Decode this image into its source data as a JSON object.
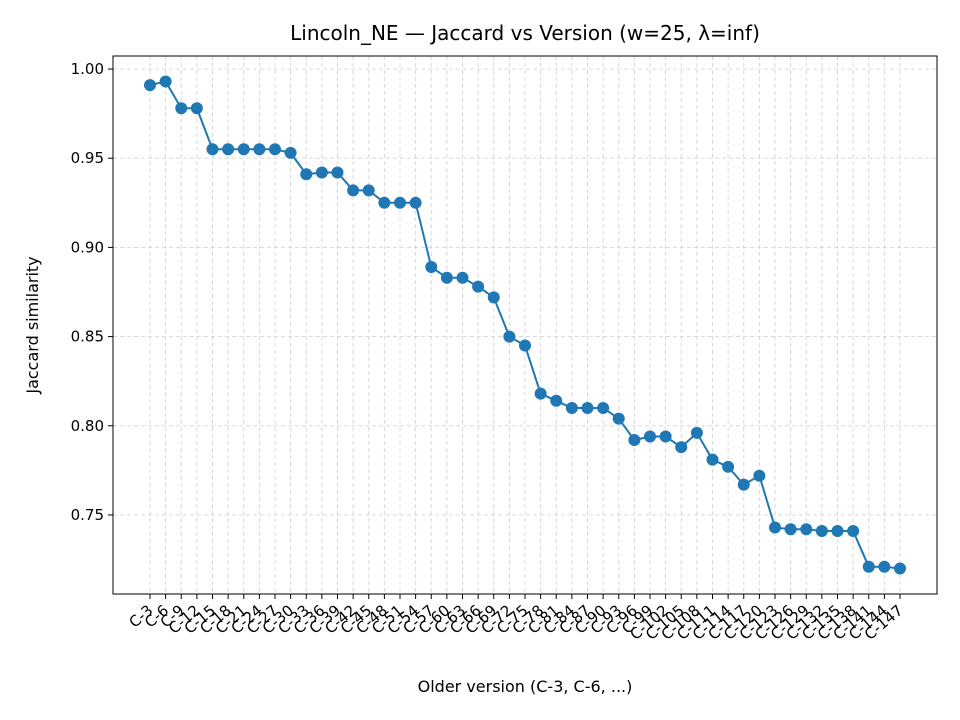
{
  "chart_data": {
    "type": "line",
    "title": "Lincoln_NE — Jaccard vs Version (w=25, λ=inf)",
    "xlabel": "Older version (C-3, C-6, ...)",
    "ylabel": "Jaccard similarity",
    "categories": [
      "C-3",
      "C-6",
      "C-9",
      "C-12",
      "C-15",
      "C-18",
      "C-21",
      "C-24",
      "C-27",
      "C-30",
      "C-33",
      "C-36",
      "C-39",
      "C-42",
      "C-45",
      "C-48",
      "C-51",
      "C-54",
      "C-57",
      "C-60",
      "C-63",
      "C-66",
      "C-69",
      "C-72",
      "C-75",
      "C-78",
      "C-81",
      "C-84",
      "C-87",
      "C-90",
      "C-93",
      "C-96",
      "C-99",
      "C-102",
      "C-105",
      "C-108",
      "C-111",
      "C-114",
      "C-117",
      "C-120",
      "C-123",
      "C-126",
      "C-129",
      "C-132",
      "C-135",
      "C-138",
      "C-141",
      "C-144",
      "C-147"
    ],
    "series": [
      {
        "values": [
          0.991,
          0.993,
          0.978,
          0.978,
          0.955,
          0.955,
          0.955,
          0.955,
          0.955,
          0.953,
          0.941,
          0.942,
          0.942,
          0.932,
          0.932,
          0.925,
          0.925,
          0.925,
          0.889,
          0.883,
          0.883,
          0.878,
          0.872,
          0.85,
          0.845,
          0.818,
          0.814,
          0.81,
          0.81,
          0.81,
          0.804,
          0.792,
          0.794,
          0.794,
          0.788,
          0.796,
          0.781,
          0.777,
          0.767,
          0.772,
          0.743,
          0.742,
          0.742,
          0.741,
          0.741,
          0.741,
          0.721,
          0.721,
          0.72
        ],
        "color": "#1f77b4"
      }
    ],
    "yticks": [
      "0.75",
      "0.80",
      "0.85",
      "0.90",
      "0.95",
      "1.00"
    ],
    "ylim": [
      0.7057,
      1.0073
    ],
    "grid": true,
    "line_style": "dashed-grid"
  }
}
